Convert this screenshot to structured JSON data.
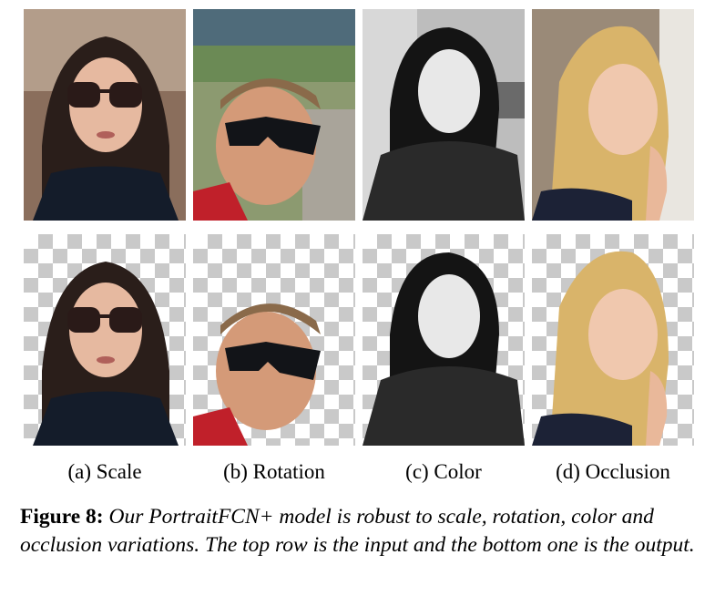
{
  "figure": {
    "panels": [
      {
        "label": "(a) Scale",
        "subject": "woman-sunglasses"
      },
      {
        "label": "(b) Rotation",
        "subject": "man-sunglasses"
      },
      {
        "label": "(c) Color",
        "subject": "woman-grayscale"
      },
      {
        "label": "(d) Occlusion",
        "subject": "woman-blonde"
      }
    ],
    "caption": {
      "figure_number": "Figure 8:",
      "text": "Our PortraitFCN+ model is robust to scale, rotation, color and occlusion variations. The top row is the input and the bottom one is the output."
    }
  }
}
